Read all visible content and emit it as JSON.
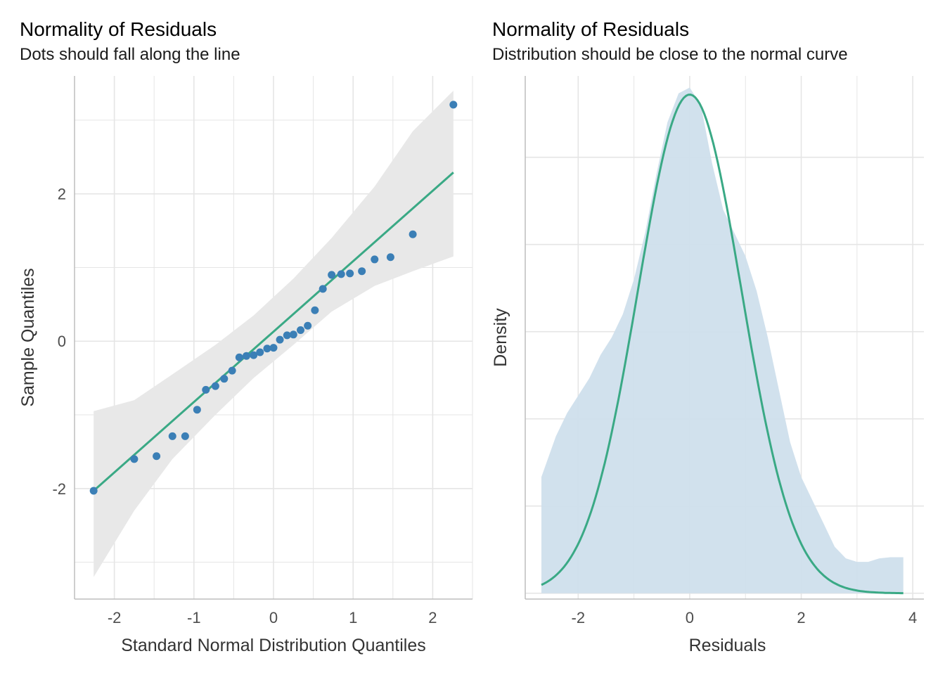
{
  "colors": {
    "points": "#3b7fb6",
    "line": "#3aa985",
    "band": "#e8e8e8",
    "density_fill": "#cfdfec",
    "grid": "#e5e5e5",
    "axis": "#bdbdbd"
  },
  "chart_data": [
    {
      "type": "scatter",
      "title": "Normality of Residuals",
      "subtitle": "Dots should fall along the line",
      "xlabel": "Standard Normal Distribution Quantiles",
      "ylabel": "Sample Quantiles",
      "xlim": [
        -2.5,
        2.5
      ],
      "ylim": [
        -3.5,
        3.6
      ],
      "xticks": [
        -2,
        -1,
        0,
        1,
        2
      ],
      "xtick_labels": [
        "-2",
        "-1",
        "0",
        "1",
        "2"
      ],
      "yticks": [
        -2,
        0,
        2
      ],
      "ytick_labels": [
        "-2",
        "0",
        "2"
      ],
      "grid": true,
      "points": {
        "x": [
          -2.26,
          -1.75,
          -1.47,
          -1.27,
          -1.11,
          -0.96,
          -0.85,
          -0.73,
          -0.62,
          -0.52,
          -0.43,
          -0.34,
          -0.25,
          -0.17,
          -0.08,
          0.0,
          0.08,
          0.17,
          0.25,
          0.34,
          0.43,
          0.52,
          0.62,
          0.73,
          0.85,
          0.96,
          1.11,
          1.27,
          1.47,
          1.75,
          2.26
        ],
        "y": [
          -2.03,
          -1.6,
          -1.56,
          -1.29,
          -1.29,
          -0.93,
          -0.66,
          -0.61,
          -0.51,
          -0.4,
          -0.22,
          -0.2,
          -0.19,
          -0.15,
          -0.1,
          -0.09,
          0.02,
          0.08,
          0.09,
          0.15,
          0.21,
          0.42,
          0.71,
          0.9,
          0.91,
          0.92,
          0.95,
          1.11,
          1.14,
          1.45,
          3.21
        ]
      },
      "reference_line": {
        "x": [
          -2.26,
          2.26
        ],
        "y": [
          -2.03,
          2.29
        ]
      },
      "confidence_band": {
        "x": [
          -2.26,
          -1.75,
          -1.27,
          -0.73,
          -0.25,
          0.25,
          0.73,
          1.27,
          1.75,
          2.26
        ],
        "lower": [
          -3.2,
          -2.3,
          -1.6,
          -1.0,
          -0.5,
          -0.05,
          0.4,
          0.75,
          0.95,
          1.15
        ],
        "upper": [
          -0.95,
          -0.8,
          -0.45,
          -0.05,
          0.35,
          0.85,
          1.4,
          2.1,
          2.85,
          3.4
        ]
      }
    },
    {
      "type": "area",
      "title": "Normality of Residuals",
      "subtitle": "Distribution should be close to the normal curve",
      "xlabel": "Residuals",
      "ylabel": "Density",
      "xlim": [
        -2.95,
        4.2
      ],
      "ylim": [
        -0.005,
        0.445
      ],
      "xticks": [
        -2,
        0,
        2,
        4
      ],
      "xtick_labels": [
        "-2",
        "0",
        "2",
        "4"
      ],
      "yticks": [
        0,
        0.075,
        0.15,
        0.225,
        0.3,
        0.375
      ],
      "grid": true,
      "density": {
        "x": [
          -2.66,
          -2.4,
          -2.2,
          -2.0,
          -1.8,
          -1.6,
          -1.4,
          -1.2,
          -1.0,
          -0.8,
          -0.6,
          -0.4,
          -0.2,
          0.0,
          0.2,
          0.4,
          0.6,
          0.8,
          1.0,
          1.2,
          1.4,
          1.6,
          1.8,
          2.0,
          2.2,
          2.4,
          2.6,
          2.8,
          3.0,
          3.2,
          3.4,
          3.6,
          3.83
        ],
        "y": [
          0.1,
          0.135,
          0.155,
          0.17,
          0.185,
          0.205,
          0.22,
          0.24,
          0.27,
          0.31,
          0.36,
          0.405,
          0.43,
          0.435,
          0.42,
          0.37,
          0.33,
          0.31,
          0.29,
          0.26,
          0.22,
          0.175,
          0.13,
          0.1,
          0.08,
          0.06,
          0.04,
          0.03,
          0.027,
          0.027,
          0.03,
          0.031,
          0.031
        ]
      },
      "normal_curve": {
        "mean": 0.0,
        "sd": 0.93,
        "x_range": [
          -2.66,
          3.83
        ]
      }
    }
  ]
}
